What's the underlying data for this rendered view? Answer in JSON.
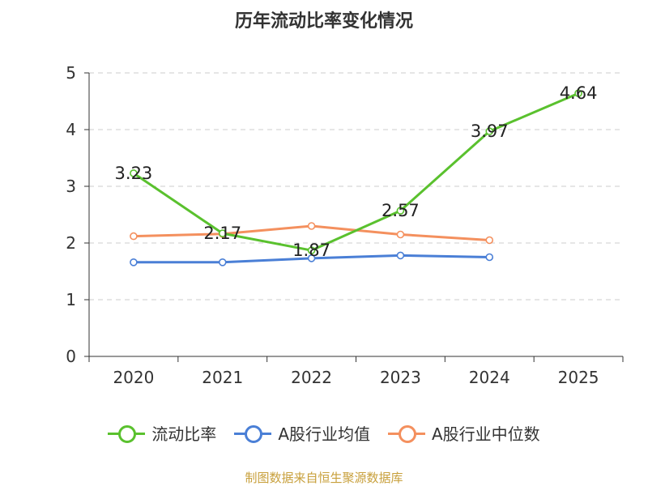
{
  "chart_data": {
    "type": "line",
    "title": "历年流动比率变化情况",
    "xlabel": "",
    "ylabel": "",
    "categories": [
      "2020",
      "2021",
      "2022",
      "2023",
      "2024",
      "2025"
    ],
    "ylim": [
      0,
      5
    ],
    "yticks": [
      "0",
      "1",
      "2",
      "3",
      "4",
      "5"
    ],
    "grid": true,
    "legend_position": "bottom",
    "series": [
      {
        "name": "流动比率",
        "color": "#5ac12e",
        "values": [
          3.23,
          2.17,
          1.87,
          2.57,
          3.97,
          4.64
        ],
        "labels": [
          "3.23",
          "2.17",
          "1.87",
          "2.57",
          "3.97",
          "4.64"
        ]
      },
      {
        "name": "A股行业均值",
        "color": "#4a7fd6",
        "values": [
          1.66,
          1.66,
          1.73,
          1.78,
          1.75,
          null
        ]
      },
      {
        "name": "A股行业中位数",
        "color": "#f4905e",
        "values": [
          2.12,
          2.16,
          2.3,
          2.15,
          2.05,
          null
        ]
      }
    ]
  },
  "footer": {
    "source": "制图数据来自恒生聚源数据库"
  }
}
